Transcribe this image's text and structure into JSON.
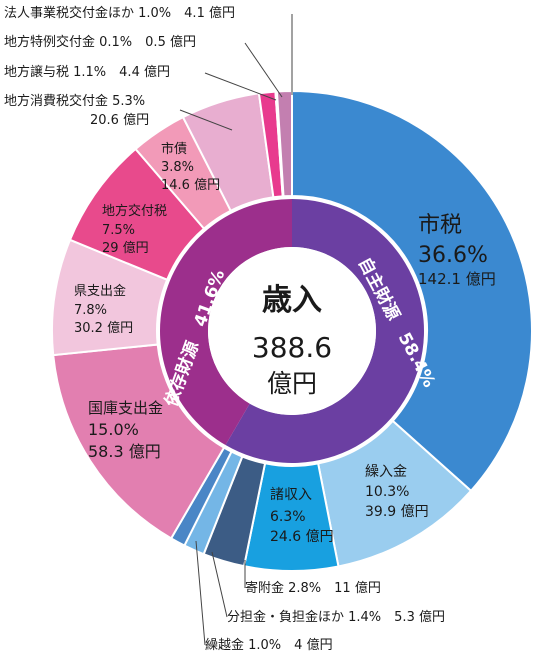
{
  "chart_data": {
    "type": "pie",
    "title": "歳入",
    "total_value": "388.6",
    "total_unit": "億円",
    "categories": [
      {
        "name": "市税",
        "percent": 36.6,
        "value": 142.1,
        "color": "#3b89d0",
        "group": "own"
      },
      {
        "name": "繰入金",
        "percent": 10.3,
        "value": 39.9,
        "color": "#9acdef",
        "group": "own"
      },
      {
        "name": "諸収入",
        "percent": 6.3,
        "value": 24.6,
        "color": "#18a0e0",
        "group": "own"
      },
      {
        "name": "寄附金",
        "percent": 2.8,
        "value": 11,
        "color": "#3c5c85",
        "group": "own"
      },
      {
        "name": "分担金・負担金ほか",
        "percent": 1.4,
        "value": 5.3,
        "color": "#74b6e6",
        "group": "own"
      },
      {
        "name": "繰越金",
        "percent": 1.0,
        "value": 4,
        "color": "#4a86c6",
        "group": "own"
      },
      {
        "name": "国庫支出金",
        "percent": 15.0,
        "value": 58.3,
        "color": "#e27fb0",
        "group": "dep"
      },
      {
        "name": "県支出金",
        "percent": 7.8,
        "value": 30.2,
        "color": "#f2c6dd",
        "group": "dep"
      },
      {
        "name": "地方交付税",
        "percent": 7.5,
        "value": 29,
        "color": "#e84a8c",
        "group": "dep"
      },
      {
        "name": "市債",
        "percent": 3.8,
        "value": 14.6,
        "color": "#f29ab8",
        "group": "dep"
      },
      {
        "name": "地方消費税交付金",
        "percent": 5.3,
        "value": 20.6,
        "color": "#e8aed0",
        "group": "dep"
      },
      {
        "name": "地方譲与税",
        "percent": 1.1,
        "value": 4.4,
        "color": "#e83a8e",
        "group": "dep"
      },
      {
        "name": "地方特例交付金",
        "percent": 0.1,
        "value": 0.5,
        "color": "#d0d0d0",
        "group": "dep"
      },
      {
        "name": "法人事業税交付金ほか",
        "percent": 1.0,
        "value": 4.1,
        "color": "#c37fb0",
        "group": "dep"
      }
    ],
    "groups": [
      {
        "name": "自主財源",
        "percent": 58.4,
        "color": "#6b3fa2"
      },
      {
        "name": "依存財源",
        "percent": 41.6,
        "color": "#9c2f8c"
      }
    ],
    "unit": "億円",
    "pct_sign": "%"
  }
}
